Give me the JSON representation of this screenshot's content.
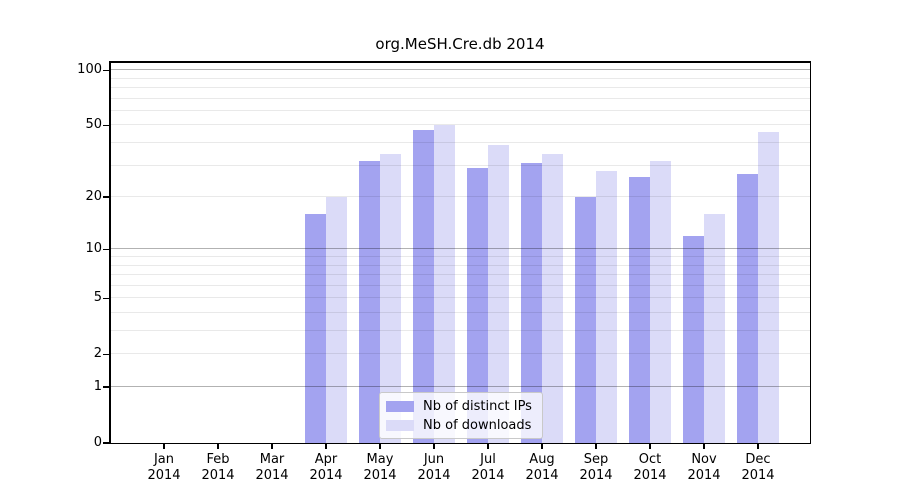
{
  "title": "org.MeSH.Cre.db 2014",
  "chart_data": {
    "type": "bar",
    "title": "org.MeSH.Cre.db 2014",
    "xlabel": "",
    "ylabel": "",
    "categories": [
      "Jan",
      "Feb",
      "Mar",
      "Apr",
      "May",
      "Jun",
      "Jul",
      "Aug",
      "Sep",
      "Oct",
      "Nov",
      "Dec"
    ],
    "year": "2014",
    "series": [
      {
        "name": "Nb of distinct IPs",
        "color": "#a3a3f0",
        "values": [
          0,
          0,
          0,
          16,
          32,
          47,
          29,
          31,
          20,
          26,
          12,
          27
        ]
      },
      {
        "name": "Nb of downloads",
        "color": "#dbdbf8",
        "values": [
          0,
          0,
          0,
          20,
          35,
          50,
          39,
          35,
          28,
          32,
          16,
          46
        ]
      }
    ],
    "y_scale": "log10(1+v)",
    "ylim": [
      0,
      111
    ],
    "y_ticks": [
      0,
      1,
      2,
      5,
      10,
      20,
      50,
      100
    ],
    "y_minor_gridlines": [
      2,
      3,
      4,
      5,
      6,
      7,
      8,
      9,
      20,
      30,
      40,
      50,
      60,
      70,
      80,
      90
    ],
    "y_major_gridlines": [
      1,
      10,
      100
    ],
    "grid": true,
    "legend_position": "lower center",
    "legend": [
      "Nb of distinct IPs",
      "Nb of downloads"
    ]
  }
}
